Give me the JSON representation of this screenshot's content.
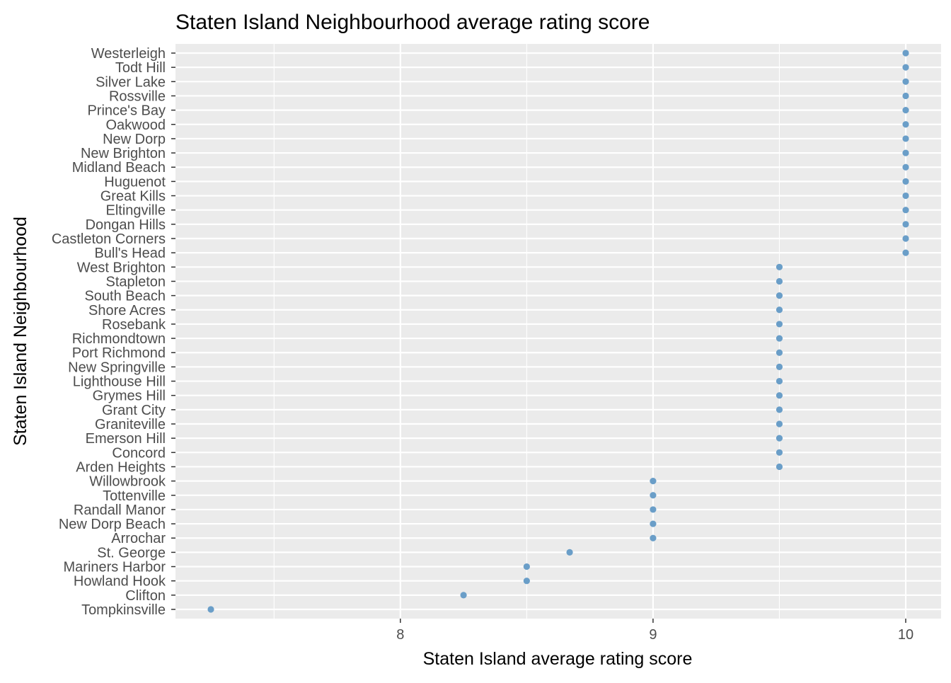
{
  "chart_data": {
    "type": "scatter",
    "title": "Staten Island Neighbourhood average rating score",
    "xlabel": "Staten Island average rating score",
    "ylabel": "Staten Island Neighbourhood",
    "xlim": [
      7.11,
      10.14
    ],
    "x_ticks": [
      8,
      9,
      10
    ],
    "x_tick_labels": [
      "8",
      "9",
      "10"
    ],
    "x_minor_ticks": [
      7.5,
      8.5,
      9.5
    ],
    "grid": true,
    "legend": "none",
    "colors": {
      "panel": "#ebebeb",
      "grid": "#ffffff",
      "point": "#6a9ec8",
      "tick": "#333333"
    },
    "categories": [
      "Tompkinsville",
      "Clifton",
      "Howland Hook",
      "Mariners Harbor",
      "St. George",
      "Arrochar",
      "New Dorp Beach",
      "Randall Manor",
      "Tottenville",
      "Willowbrook",
      "Arden Heights",
      "Concord",
      "Emerson Hill",
      "Graniteville",
      "Grant City",
      "Grymes Hill",
      "Lighthouse Hill",
      "New Springville",
      "Port Richmond",
      "Richmondtown",
      "Rosebank",
      "Shore Acres",
      "South Beach",
      "Stapleton",
      "West Brighton",
      "Bull's Head",
      "Castleton Corners",
      "Dongan Hills",
      "Eltingville",
      "Great Kills",
      "Huguenot",
      "Midland Beach",
      "New Brighton",
      "New Dorp",
      "Oakwood",
      "Prince's Bay",
      "Rossville",
      "Silver Lake",
      "Todt Hill",
      "Westerleigh"
    ],
    "values": [
      7.25,
      8.25,
      8.5,
      8.5,
      8.67,
      9.0,
      9.0,
      9.0,
      9.0,
      9.0,
      9.5,
      9.5,
      9.5,
      9.5,
      9.5,
      9.5,
      9.5,
      9.5,
      9.5,
      9.5,
      9.5,
      9.5,
      9.5,
      9.5,
      9.5,
      10.0,
      10.0,
      10.0,
      10.0,
      10.0,
      10.0,
      10.0,
      10.0,
      10.0,
      10.0,
      10.0,
      10.0,
      10.0,
      10.0,
      10.0
    ]
  }
}
